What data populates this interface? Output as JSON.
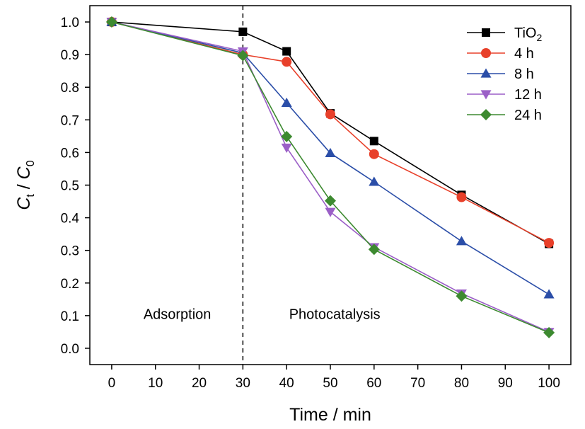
{
  "chart_data": {
    "type": "line",
    "xlabel": "Time / min",
    "ylabel": {
      "main1": "C",
      "sub1": "t",
      "sep": " / ",
      "main2": "C",
      "sub2": "0"
    },
    "xlim": [
      -5,
      105
    ],
    "ylim": [
      -0.05,
      1.05
    ],
    "x_ticks": [
      0,
      10,
      20,
      30,
      40,
      50,
      60,
      70,
      80,
      90,
      100
    ],
    "y_ticks": [
      0.0,
      0.1,
      0.2,
      0.3,
      0.4,
      0.5,
      0.6,
      0.7,
      0.8,
      0.9,
      1.0
    ],
    "y_tick_labels": [
      "0.0",
      "0.1",
      "0.2",
      "0.3",
      "0.4",
      "0.5",
      "0.6",
      "0.7",
      "0.8",
      "0.9",
      "1.0"
    ],
    "grid": false,
    "legend_position": "top-right",
    "x": [
      0,
      30,
      40,
      50,
      60,
      80,
      100
    ],
    "series": [
      {
        "name": "TiO2",
        "name_main": "TiO",
        "name_sub": "2",
        "color": "#000000",
        "marker": "square",
        "values": [
          1.0,
          0.97,
          0.91,
          0.72,
          0.635,
          0.47,
          0.32
        ]
      },
      {
        "name": "4 h",
        "color": "#e8402a",
        "marker": "circle",
        "values": [
          1.0,
          0.9,
          0.878,
          0.717,
          0.595,
          0.463,
          0.323
        ]
      },
      {
        "name": "8 h",
        "color": "#2b4ea8",
        "marker": "triangle-up",
        "values": [
          1.0,
          0.905,
          0.752,
          0.598,
          0.51,
          0.328,
          0.165
        ]
      },
      {
        "name": "12 h",
        "color": "#9b5fc7",
        "marker": "triangle-down",
        "values": [
          1.0,
          0.91,
          0.615,
          0.418,
          0.31,
          0.168,
          0.05
        ]
      },
      {
        "name": "24 h",
        "color": "#3d8a30",
        "marker": "diamond",
        "values": [
          1.0,
          0.897,
          0.649,
          0.452,
          0.303,
          0.16,
          0.048
        ]
      }
    ],
    "divider_x": 30,
    "annotations": [
      {
        "text": "Adsorption",
        "x": 15,
        "y": 0.09
      },
      {
        "text": "Photocatalysis",
        "x": 51,
        "y": 0.09
      }
    ]
  }
}
